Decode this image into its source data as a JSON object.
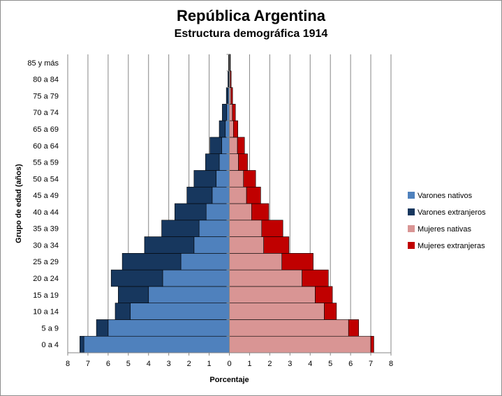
{
  "chart_data": {
    "type": "bar",
    "orientation": "horizontal-pyramid",
    "title": "República Argentina",
    "subtitle": "Estructura demográfica 1914",
    "xlabel": "Porcentaje",
    "ylabel": "Grupo de edad (años)",
    "xlim": [
      -8,
      8
    ],
    "x_ticks": [
      "8",
      "7",
      "6",
      "5",
      "4",
      "3",
      "2",
      "1",
      "0",
      "1",
      "2",
      "3",
      "4",
      "5",
      "6",
      "7",
      "8"
    ],
    "grid": "vertical",
    "legend_position": "right",
    "categories": [
      "0 a 4",
      "5 a 9",
      "10 a 14",
      "15 a 19",
      "20 a 24",
      "25 a 29",
      "30 a 34",
      "35 a 39",
      "40 a 44",
      "45 a 49",
      "50 a 54",
      "55 a 59",
      "60 a 64",
      "65 a 69",
      "70 a 74",
      "75 a 79",
      "80 a 84",
      "85 y más"
    ],
    "series": [
      {
        "name": "Varones nativos",
        "side": "left",
        "color": "#4f81bd",
        "values": [
          7.2,
          6.0,
          4.9,
          4.0,
          3.3,
          2.4,
          1.75,
          1.5,
          1.15,
          0.85,
          0.65,
          0.5,
          0.38,
          0.2,
          0.13,
          0.07,
          0.04,
          0.02
        ]
      },
      {
        "name": "Varones extranjeros",
        "side": "left",
        "color": "#17375e",
        "values": [
          0.2,
          0.58,
          0.75,
          1.5,
          2.55,
          2.9,
          2.45,
          1.85,
          1.55,
          1.25,
          1.1,
          0.68,
          0.58,
          0.3,
          0.22,
          0.08,
          0.03,
          0.02
        ]
      },
      {
        "name": "Mujeres nativas",
        "side": "right",
        "color": "#d99594",
        "values": [
          7.0,
          5.9,
          4.7,
          4.25,
          3.6,
          2.6,
          1.7,
          1.6,
          1.1,
          0.85,
          0.7,
          0.45,
          0.4,
          0.2,
          0.15,
          0.08,
          0.05,
          0.03
        ]
      },
      {
        "name": "Mujeres extranjeras",
        "side": "right",
        "color": "#c00000",
        "values": [
          0.15,
          0.5,
          0.6,
          0.85,
          1.3,
          1.55,
          1.25,
          1.05,
          0.85,
          0.7,
          0.6,
          0.45,
          0.35,
          0.22,
          0.15,
          0.08,
          0.04,
          0.02
        ]
      }
    ]
  }
}
